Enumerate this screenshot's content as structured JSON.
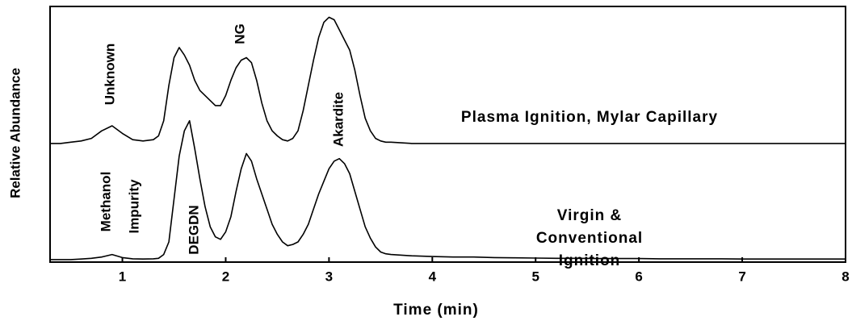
{
  "chart_data": {
    "type": "line",
    "xlabel": "Time (min)",
    "ylabel": "Relative Abundance",
    "x": [
      0.3,
      0.4,
      0.5,
      0.6,
      0.7,
      0.8,
      0.9,
      1.0,
      1.1,
      1.2,
      1.3,
      1.35,
      1.4,
      1.45,
      1.5,
      1.55,
      1.6,
      1.65,
      1.7,
      1.75,
      1.8,
      1.85,
      1.9,
      1.95,
      2.0,
      2.05,
      2.1,
      2.15,
      2.2,
      2.25,
      2.3,
      2.35,
      2.4,
      2.45,
      2.5,
      2.55,
      2.6,
      2.65,
      2.7,
      2.75,
      2.8,
      2.85,
      2.9,
      2.95,
      3.0,
      3.05,
      3.1,
      3.15,
      3.2,
      3.25,
      3.3,
      3.35,
      3.4,
      3.45,
      3.5,
      3.55,
      3.6,
      3.8,
      4.0,
      4.2,
      4.4,
      4.6,
      4.8,
      5.0,
      5.2,
      5.4,
      5.6,
      5.8,
      6.0,
      6.2,
      6.4,
      6.6,
      6.8,
      7.0,
      7.2,
      7.4,
      7.6,
      7.8,
      8.0
    ],
    "series": [
      {
        "name": "Plasma Ignition, Mylar Capillary",
        "color": "#000000",
        "values": [
          47,
          47,
          47.5,
          48,
          49,
          52,
          54,
          51,
          48.5,
          48,
          48.5,
          50,
          56,
          70,
          81,
          85,
          82,
          78,
          72,
          68,
          66,
          64,
          62,
          62,
          66,
          72,
          77,
          80,
          81,
          79,
          72,
          63,
          56,
          52,
          50,
          48.5,
          48,
          49,
          52,
          60,
          70,
          80,
          89,
          95,
          97,
          96,
          92,
          88,
          84,
          76,
          66,
          57,
          52,
          49,
          48,
          47.5,
          47.5,
          47,
          47,
          47,
          47,
          47,
          47,
          47,
          47,
          47,
          47,
          47,
          47,
          47,
          47,
          47,
          47,
          47,
          47,
          47,
          47,
          47,
          47
        ]
      },
      {
        "name": "Virgin & Conventional Ignition",
        "color": "#000000",
        "values": [
          1,
          1,
          1,
          1.2,
          1.5,
          2,
          3,
          1.8,
          1.3,
          1.2,
          1.3,
          1.5,
          3,
          8,
          25,
          42,
          52,
          56,
          45,
          33,
          22,
          14,
          10,
          9,
          12,
          18,
          28,
          37,
          43,
          40,
          33,
          27,
          21,
          15,
          11,
          8,
          6.5,
          7,
          8,
          11,
          15,
          21,
          27,
          32,
          37,
          40,
          41,
          39,
          35,
          28,
          21,
          14,
          9.5,
          6,
          4,
          3.3,
          3,
          2.5,
          2.2,
          2,
          2,
          1.8,
          1.7,
          1.6,
          1.5,
          1.5,
          1.4,
          1.4,
          1.4,
          1.3,
          1.3,
          1.3,
          1.3,
          1.2,
          1.2,
          1.2,
          1.2,
          1.2,
          1.2
        ]
      }
    ],
    "annotations": [
      "Unknown",
      "NG",
      "Akardite",
      "Methanol",
      "Impurity",
      "DEGDN"
    ],
    "xlim": [
      0.3,
      8.0
    ],
    "xticks": [
      1,
      2,
      3,
      4,
      5,
      6,
      7,
      8
    ],
    "ylim": [
      0,
      100
    ]
  }
}
